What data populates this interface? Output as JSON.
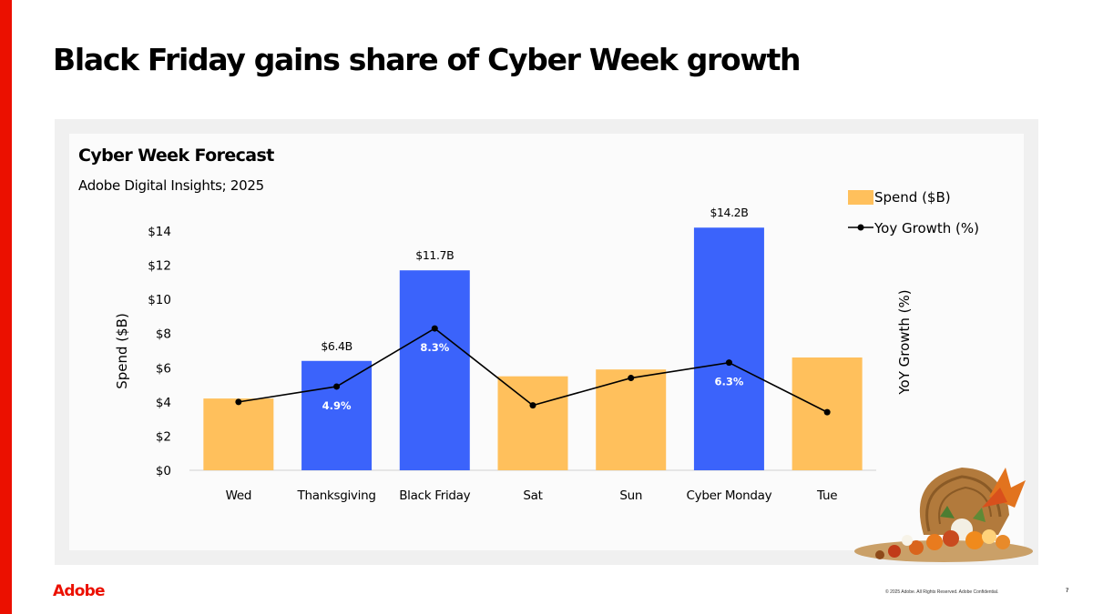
{
  "slide": {
    "title": "Black Friday gains share of Cyber Week growth",
    "logo": "Adobe",
    "copyright": "© 2025 Adobe. All Rights Reserved. Adobe Confidential.",
    "page_number": "7"
  },
  "colors": {
    "brand_red": "#eb1000",
    "bar_default": "#ffc05c",
    "bar_highlight": "#3b63fb",
    "line": "#000000"
  },
  "chart_data": {
    "type": "bar",
    "title": "Cyber Week Forecast",
    "subtitle": "Adobe Digital Insights; 2025",
    "categories": [
      "Wed",
      "Thanksgiving",
      "Black Friday",
      "Sat",
      "Sun",
      "Cyber Monday",
      "Tue"
    ],
    "series": [
      {
        "name": "Spend ($B)",
        "type": "bar",
        "axis": "left",
        "values": [
          4.2,
          6.4,
          11.7,
          5.5,
          5.9,
          14.2,
          6.6
        ],
        "highlighted": [
          false,
          true,
          true,
          false,
          false,
          true,
          false
        ],
        "data_labels": [
          "",
          "$6.4B",
          "$11.7B",
          "",
          "",
          "$14.2B",
          ""
        ]
      },
      {
        "name": "Yoy Growth (%)",
        "type": "line",
        "axis": "right",
        "values": [
          4.0,
          4.9,
          8.3,
          3.8,
          5.4,
          6.3,
          3.4
        ],
        "data_labels": [
          "",
          "4.9%",
          "8.3%",
          "",
          "",
          "6.3%",
          ""
        ]
      }
    ],
    "ylabel": "Spend ($B)",
    "ylabel_right": "YoY Growth (%)",
    "ylim": [
      0,
      14
    ],
    "yticks": [
      0,
      2,
      4,
      6,
      8,
      10,
      12,
      14
    ],
    "ytick_labels": [
      "$0",
      "$2",
      "$4",
      "$6",
      "$8",
      "$10",
      "$12",
      "$14"
    ],
    "y2lim": [
      0,
      14
    ],
    "legend": {
      "position": "top-right",
      "entries": [
        "Spend ($B)",
        "Yoy Growth (%)"
      ]
    },
    "grid": false
  }
}
